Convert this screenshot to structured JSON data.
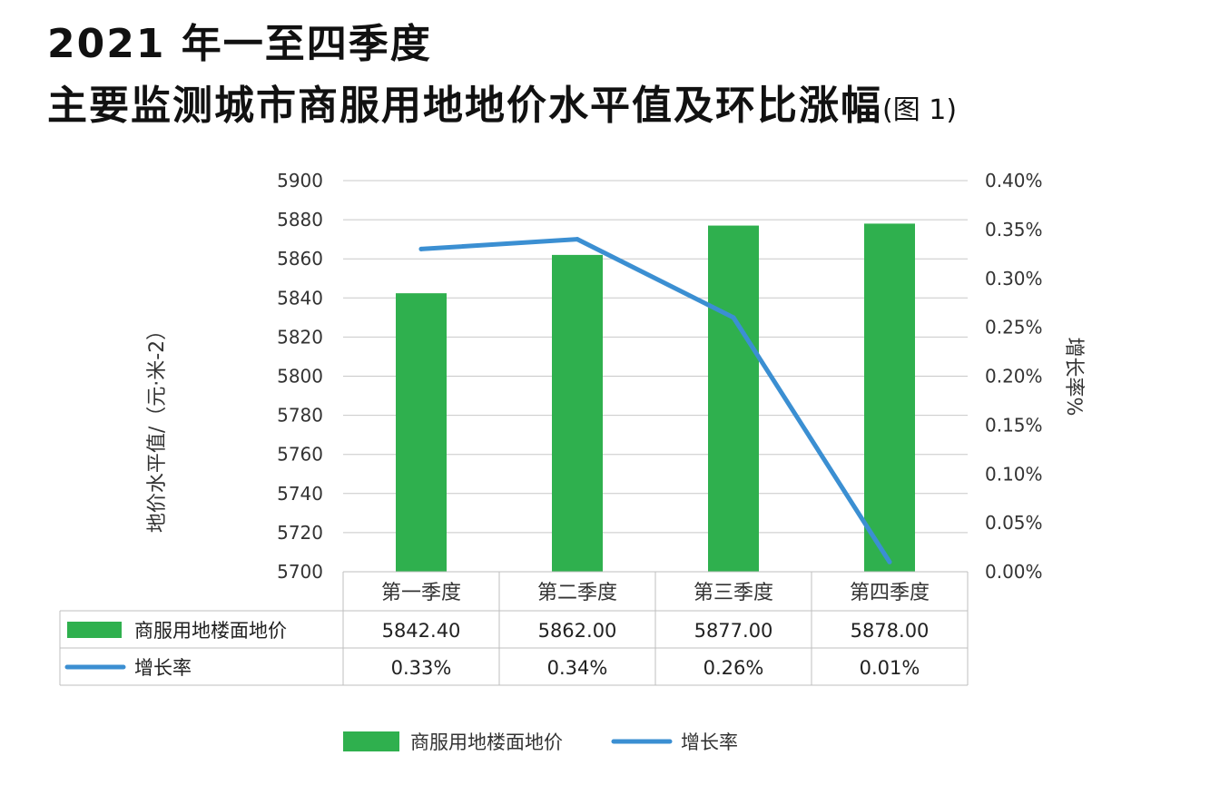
{
  "title": {
    "line1": "2021 年一至四季度",
    "line2": "主要监测城市商服用地地价水平值及环比涨幅",
    "note": "(图 1)"
  },
  "colors": {
    "bar": "#2fb04e",
    "line": "#3b8fd2",
    "grid": "#c8c8c8",
    "table_border": "#bfbfbf"
  },
  "chart_data": {
    "type": "bar",
    "categories": [
      "第一季度",
      "第二季度",
      "第三季度",
      "第四季度"
    ],
    "series": [
      {
        "name": "商服用地楼面地价",
        "type": "bar",
        "axis": "left",
        "values": [
          5842.4,
          5862.0,
          5877.0,
          5878.0
        ],
        "labels": [
          "5842.40",
          "5862.00",
          "5877.00",
          "5878.00"
        ]
      },
      {
        "name": "增长率",
        "type": "line",
        "axis": "right",
        "values": [
          0.33,
          0.34,
          0.26,
          0.01
        ],
        "labels": [
          "0.33%",
          "0.34%",
          "0.26%",
          "0.01%"
        ]
      }
    ],
    "ylabel": "地价水平值/（元·米-2）",
    "y2label": "增长率%",
    "ylim": [
      5700,
      5900
    ],
    "yticks": [
      "5700",
      "5720",
      "5740",
      "5760",
      "5780",
      "5800",
      "5820",
      "5840",
      "5860",
      "5880",
      "5900"
    ],
    "y2lim": [
      0,
      0.4
    ],
    "y2ticks": [
      "0.00%",
      "0.05%",
      "0.10%",
      "0.15%",
      "0.20%",
      "0.25%",
      "0.30%",
      "0.35%",
      "0.40%"
    ],
    "grid": true,
    "data_table": true,
    "legend": "bottom"
  }
}
